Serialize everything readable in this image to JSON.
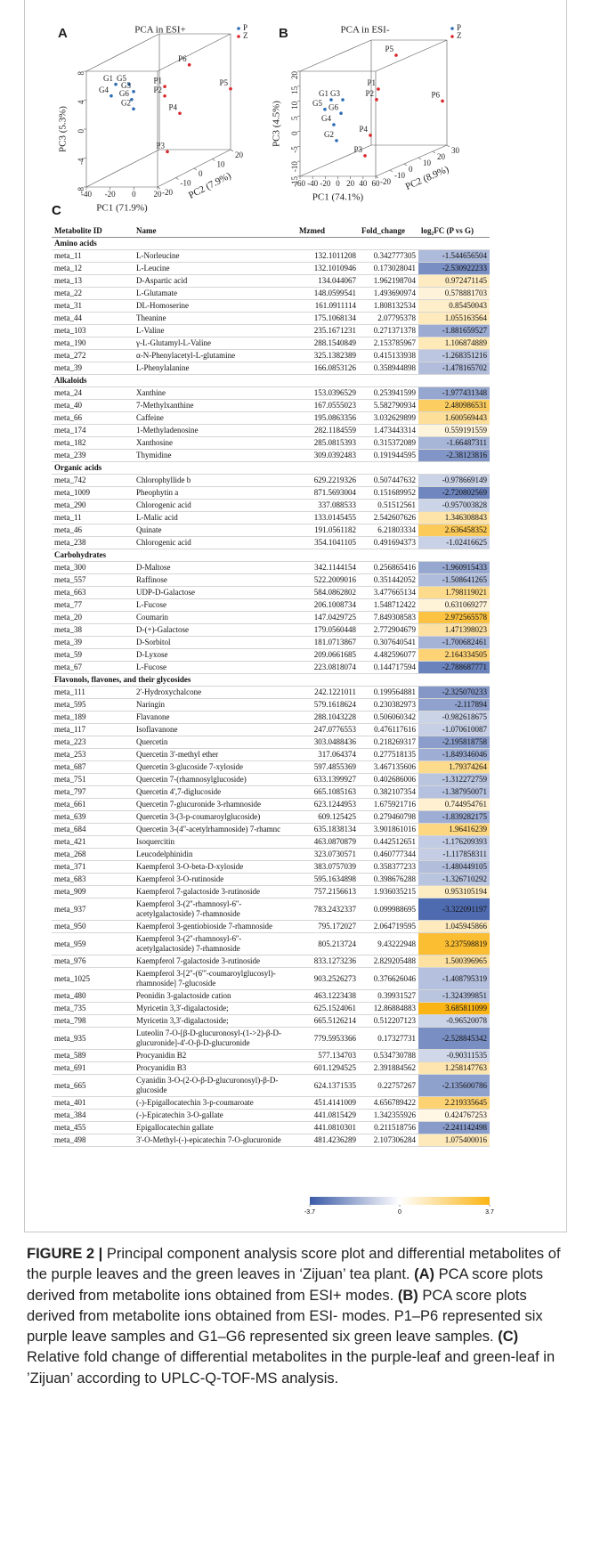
{
  "chart_data": [
    {
      "type": "scatter3d",
      "panel": "A",
      "title": "PCA in ESI+",
      "xlabel": "PC1 (71.9%)",
      "ylabel": "PC2 (7.9%)",
      "zlabel": "PC3 (5.3%)",
      "xlim": [
        -40,
        20
      ],
      "ylim": [
        -20,
        20
      ],
      "zlim": [
        -8,
        8
      ],
      "xticks": [
        -40,
        -20,
        0,
        20
      ],
      "yticks": [
        -20,
        -10,
        0,
        10,
        20
      ],
      "zticks": [
        -8,
        -4,
        0,
        4,
        8
      ],
      "series": [
        {
          "name": "P",
          "color": "#2e6db4",
          "labels": [
            "G1",
            "G5",
            "G3",
            "G4",
            "G6",
            "G2"
          ],
          "x": [
            -30.6,
            -19.4,
            -15.6,
            -34.4,
            -17.2,
            -15.6
          ],
          "y": [
            -10,
            -10,
            -10,
            -10,
            -10,
            -10
          ],
          "z": [
            4.9,
            4.9,
            3.9,
            3.3,
            2.8,
            1.5
          ]
        },
        {
          "name": "Z",
          "color": "#d9262b",
          "labels": [
            "P1",
            "P2",
            "P6",
            "P5",
            "P4",
            "P3"
          ],
          "x": [
            -4.7,
            -4.7,
            16,
            20,
            8,
            -2.5
          ],
          "y": [
            0,
            0,
            0,
            20,
            0,
            0
          ],
          "z": [
            3.3,
            2.0,
            6.3,
            0.4,
            -0.4,
            -5.7
          ]
        }
      ]
    },
    {
      "type": "scatter3d",
      "panel": "B",
      "title": "PCA in ESI-",
      "xlabel": "PC1 (74.1%)",
      "ylabel": "PC2 (8.9%)",
      "zlabel": "PC3 (4.5%)",
      "xlim": [
        -60,
        60
      ],
      "ylim": [
        -20,
        30
      ],
      "zlim": [
        -15,
        20
      ],
      "xticks": [
        -60,
        -40,
        -20,
        0,
        20,
        40,
        60
      ],
      "yticks": [
        -20,
        -10,
        0,
        10,
        20,
        30
      ],
      "zticks": [
        -15,
        -10,
        -5,
        0,
        5,
        10,
        15,
        20
      ],
      "series": [
        {
          "name": "P",
          "color": "#2e6db4",
          "labels": [
            "G1",
            "G3",
            "G5",
            "G6",
            "G4",
            "G2"
          ],
          "x": [
            -10.6,
            7.8,
            -20.5,
            5,
            -6.4,
            -2.1
          ],
          "y": [
            -20,
            -20,
            -20,
            -20,
            -20,
            -20
          ],
          "z": [
            10.5,
            10.5,
            7.3,
            6,
            2.2,
            -3.1
          ]
        },
        {
          "name": "Z",
          "color": "#d9262b",
          "labels": [
            "P5",
            "P1",
            "P2",
            "P4",
            "P6",
            "P3"
          ],
          "x": [
            24.7,
            19,
            16.2,
            6.4,
            53,
            -2.1
          ],
          "y": [
            10,
            0,
            0,
            0,
            30,
            0
          ],
          "z": [
            19.1,
            9.9,
            6.4,
            -5.5,
            -0.3,
            -12.3
          ]
        }
      ]
    }
  ],
  "table": {
    "panel": "C",
    "columns": [
      "Metabolite ID",
      "Name",
      "Mzmed",
      "Fold_change",
      "log₂FC (P vs G)"
    ],
    "groups": [
      {
        "name": "Amino acids",
        "rows": [
          [
            "meta_11",
            "L-Norleucine",
            132.1011208,
            0.342777305,
            -1.544656504
          ],
          [
            "meta_12",
            "L-Leucine",
            132.1010946,
            0.173028041,
            -2.530922233
          ],
          [
            "meta_13",
            "D-Aspartic acid",
            134.044067,
            1.962198704,
            0.972471145
          ],
          [
            "meta_22",
            "L-Glutamate",
            148.0599541,
            1.493690974,
            0.578881703
          ],
          [
            "meta_31",
            "DL-Homoserine",
            161.0911114,
            1.808132534,
            0.85450043
          ],
          [
            "meta_44",
            "Theanine",
            175.1068134,
            2.07795378,
            1.055163564
          ],
          [
            "meta_103",
            "L-Valine",
            235.1671231,
            0.271371378,
            -1.881659527
          ],
          [
            "meta_190",
            "γ-L-Glutamyl-L-Valine",
            288.1540849,
            2.153785967,
            1.106874889
          ],
          [
            "meta_272",
            "α-N-Phenylacetyl-L-glutamine",
            325.1382389,
            0.415133938,
            -1.268351216
          ],
          [
            "meta_39",
            "L-Phenylalanine",
            166.0853126,
            0.358944898,
            -1.478165702
          ]
        ]
      },
      {
        "name": "Alkaloids",
        "rows": [
          [
            "meta_24",
            "Xanthine",
            153.0396529,
            0.253941599,
            -1.977431348
          ],
          [
            "meta_40",
            "7-Methylxanthine",
            167.0555023,
            5.582790934,
            2.480986531
          ],
          [
            "meta_66",
            "Caffeine",
            195.0863356,
            3.032629899,
            1.600569443
          ],
          [
            "meta_174",
            "1-Methyladenosine",
            282.1184559,
            1.473443314,
            0.559191559
          ],
          [
            "meta_182",
            "Xanthosine",
            285.0815393,
            0.315372089,
            -1.66487311
          ],
          [
            "meta_239",
            "Thymidine",
            309.0392483,
            0.191944595,
            -2.38123816
          ]
        ]
      },
      {
        "name": "Organic acids",
        "rows": [
          [
            "meta_742",
            "Chlorophyllide b",
            629.2219326,
            0.507447632,
            -0.978669149
          ],
          [
            "meta_1009",
            "Pheophytin a",
            871.5693004,
            0.151689952,
            -2.720802569
          ],
          [
            "meta_290",
            "Chlorogenic acid",
            337.088533,
            0.51512561,
            -0.957003828
          ],
          [
            "meta_11",
            "L-Malic acid",
            133.0145455,
            2.542607626,
            1.346308843
          ],
          [
            "meta_46",
            "Quinate",
            191.0561182,
            6.21803334,
            2.636458352
          ],
          [
            "meta_238",
            "Chlorogenic acid",
            354.1041105,
            0.491694373,
            -1.02416625
          ]
        ]
      },
      {
        "name": "Carbohydrates",
        "rows": [
          [
            "meta_300",
            "D-Maltose",
            342.1144154,
            0.256865416,
            -1.960915433
          ],
          [
            "meta_557",
            "Raffinose",
            522.2009016,
            0.351442052,
            -1.508641265
          ],
          [
            "meta_663",
            "UDP-D-Galactose",
            584.0862802,
            3.477665134,
            1.798119021
          ],
          [
            "meta_77",
            "L-Fucose",
            206.1008734,
            1.548712422,
            0.631069277
          ],
          [
            "meta_20",
            "Coumarin",
            147.0429725,
            7.849308583,
            2.972565578
          ],
          [
            "meta_38",
            "D-(+)-Galactose",
            179.0560448,
            2.772904679,
            1.471398023
          ],
          [
            "meta_39",
            "D-Sorbitol",
            181.0713867,
            0.307640541,
            -1.700682461
          ],
          [
            "meta_59",
            "D-Lyxose",
            209.0661685,
            4.482596077,
            2.164334505
          ],
          [
            "meta_67",
            "L-Fucose",
            223.0818074,
            0.144717594,
            -2.788687771
          ]
        ]
      },
      {
        "name": "Flavonols, flavones, and their glycosides",
        "rows": [
          [
            "meta_111",
            "2'-Hydroxychalcone",
            242.1221011,
            0.199564881,
            -2.325070233
          ],
          [
            "meta_595",
            "Naringin",
            579.1618624,
            0.230382973,
            -2.117894
          ],
          [
            "meta_189",
            "Flavanone",
            288.1043228,
            0.506060342,
            -0.982618675
          ],
          [
            "meta_117",
            "Isoflavanone",
            247.0776553,
            0.476117616,
            -1.070610087
          ],
          [
            "meta_223",
            "Quercetin",
            303.0488436,
            0.218269317,
            -2.195818758
          ],
          [
            "meta_253",
            "Quercetin 3'-methyl ether",
            317.064374,
            0.277518135,
            -1.849346046
          ],
          [
            "meta_687",
            "Quercetin 3-glucoside 7-xyloside",
            597.4855369,
            3.467135606,
            1.79374264
          ],
          [
            "meta_751",
            "Quercetin 7-(rhamnosylglucoside)",
            633.1399927,
            0.402686006,
            -1.312272759
          ],
          [
            "meta_797",
            "Quercetin 4',7-diglucoside",
            665.1085163,
            0.382107354,
            -1.387950071
          ],
          [
            "meta_661",
            "Quercetin 7-glucuronide 3-rhamnoside",
            623.1244953,
            1.675921716,
            0.744954761
          ],
          [
            "meta_639",
            "Quercetin 3-(3-p-coumaroylglucoside)",
            609.125425,
            0.279460798,
            -1.839282175
          ],
          [
            "meta_684",
            "Quercetin 3-(4''-acetylrhamnoside) 7-rhamnc",
            635.1838134,
            3.901861016,
            1.96416239
          ],
          [
            "meta_421",
            "Isoquercitin",
            463.0870879,
            0.442512651,
            -1.176209393
          ],
          [
            "meta_268",
            "Leucodelphinidin",
            323.0730571,
            0.460777344,
            -1.117858311
          ],
          [
            "meta_371",
            "Kaempferol 3-O-beta-D-xyloside",
            383.0757039,
            0.358377233,
            -1.480449105
          ],
          [
            "meta_683",
            "Kaempferol 3-O-rutinoside",
            595.1634898,
            0.398676288,
            -1.326710292
          ],
          [
            "meta_909",
            "Kaempferol 7-galactoside 3-rutinoside",
            757.2156613,
            1.936035215,
            0.953105194
          ],
          [
            "meta_937",
            "Kaempferol 3-(2''-rhamnosyl-6''-acetylgalactoside) 7-rhamnoside",
            783.2432337,
            0.099988695,
            -3.322091197
          ],
          [
            "meta_950",
            "Kaempferol 3-gentiobioside 7-rhamnoside",
            795.172027,
            2.064719595,
            1.045945866
          ],
          [
            "meta_959",
            "Kaempferol 3-(2''-rhamnosyl-6''-acetylgalactoside) 7-rhamnoside",
            805.213724,
            9.43222948,
            3.237598819
          ],
          [
            "meta_976",
            "Kaempferol 7-galactoside 3-rutinoside",
            833.1273236,
            2.829205488,
            1.500396965
          ],
          [
            "meta_1025",
            "Kaempferol 3-[2''-(6'''-coumaroylglucosyl)-rhamnoside] 7-glucoside",
            903.2526273,
            0.376626046,
            -1.408795319
          ],
          [
            "meta_480",
            "Peonidin 3-galactoside cation",
            463.1223438,
            0.39931527,
            -1.324399851
          ],
          [
            "meta_735",
            "Myricetin 3,3'-digalactoside;",
            625.1524061,
            12.86884883,
            3.685811099
          ],
          [
            "meta_798",
            "Myricetin 3,3'-digalactoside;",
            665.5126214,
            0.512207123,
            -0.96520078
          ],
          [
            "meta_935",
            "Luteolin 7-O-[β-D-glucuronosyl-(1->2)-β-D-glucuronide]-4'-O-β-D-glucuronide",
            779.5953366,
            0.17327731,
            -2.528845342
          ],
          [
            "meta_589",
            "Procyanidin B2",
            577.134703,
            0.534730788,
            -0.90311535
          ],
          [
            "meta_691",
            "Procyanidin B3",
            601.1294525,
            2.391884562,
            1.258147763
          ],
          [
            "meta_665",
            "Cyanidin 3-O-(2-O-β-D-glucuronosyl)-β-D-glucoside",
            624.1371535,
            0.22757267,
            -2.135600786
          ],
          [
            "meta_401",
            "(-)-Epigallocatechin 3-p-coumaroate",
            451.4141009,
            4.656789422,
            2.219335645
          ],
          [
            "meta_384",
            "(-)-Epicatechin 3-O-gallate",
            441.0815429,
            1.342355926,
            0.424767253
          ],
          [
            "meta_455",
            "Epigallocatechin gallate",
            441.0810301,
            0.211518756,
            -2.241142498
          ],
          [
            "meta_498",
            "3'-O-Methyl-(-)-epicatechin 7-O-glucuronide",
            481.4236289,
            2.107306284,
            1.075400016
          ]
        ]
      }
    ]
  },
  "colorbar": {
    "lim": [
      -3.7,
      3.7
    ],
    "ticks": [
      -3.7,
      0,
      3.7
    ],
    "colors": [
      "#3b5aa6",
      "#ffffff",
      "#fbb414"
    ]
  },
  "caption": {
    "label": "FIGURE 2 |",
    "segments": [
      {
        "text": " Principal component analysis score plot and differential metabolites of the purple leaves and the green leaves in ‘Zijuan’ tea plant. ",
        "bold": false
      },
      {
        "text": "(A)",
        "bold": true
      },
      {
        "text": " PCA score plots derived from metabolite ions obtained from ESI+ modes. ",
        "bold": false
      },
      {
        "text": "(B)",
        "bold": true
      },
      {
        "text": " PCA score plots derived from metabolite ions obtained from ESI- modes. P1–P6 represented six purple leave samples and G1–G6 represented six green leave samples. ",
        "bold": false
      },
      {
        "text": "(C)",
        "bold": true
      },
      {
        "text": " Relative fold change of differential metabolites in the purple-leaf and green-leaf in ’Zijuan’ according to UPLC-Q-TOF-MS analysis.",
        "bold": false
      }
    ]
  }
}
